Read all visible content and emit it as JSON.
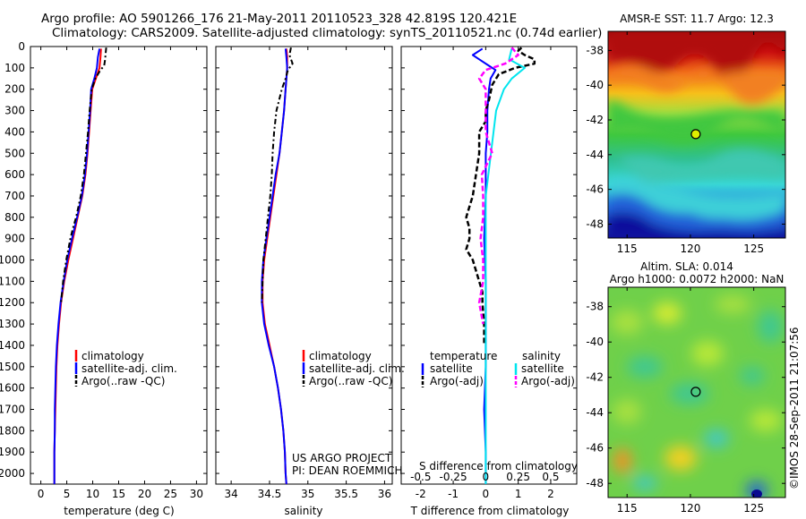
{
  "title_line1": "Argo profile: AO 5901266_176 21-May-2011 20110523_328 42.819S 120.421E",
  "title_line2": "Climatology: CARS2009. Satellite-adjusted climatology: synTS_20110521.nc (0.74d earlier)",
  "colors": {
    "climatology": "#ff0000",
    "satellite": "#0000ff",
    "argo": "#000000",
    "salinity_satellite": "#00e5ee",
    "salinity_argo": "#ff00ff",
    "marker_fill": "#e0f000"
  },
  "depth_ticks": [
    "0",
    "100",
    "200",
    "300",
    "400",
    "500",
    "600",
    "700",
    "800",
    "900",
    "1000",
    "1100",
    "1200",
    "1300",
    "1400",
    "1500",
    "1600",
    "1700",
    "1800",
    "1900",
    "2000"
  ],
  "chart_data": [
    {
      "type": "line",
      "name": "temperature-profile",
      "xlabel": "temperature (deg C)",
      "xlim": [
        -2,
        32
      ],
      "ylim": [
        0,
        2050
      ],
      "xticks": [
        "0",
        "5",
        "10",
        "15",
        "20",
        "25",
        "30"
      ],
      "xtick_values": [
        0,
        5,
        10,
        15,
        20,
        25,
        30
      ],
      "legend": [
        "climatology",
        "satellite-adj. clim.",
        "Argo(..raw -QC)"
      ],
      "series": [
        {
          "name": "climatology",
          "depth": [
            10,
            50,
            100,
            150,
            200,
            300,
            400,
            500,
            600,
            700,
            800,
            900,
            1000,
            1100,
            1200,
            1300,
            1400,
            1500,
            1600,
            1700,
            1800,
            1900,
            2000,
            2050
          ],
          "values": [
            11.6,
            11.5,
            11.3,
            10.6,
            9.9,
            9.6,
            9.3,
            9.0,
            8.6,
            8.0,
            7.1,
            6.2,
            5.3,
            4.5,
            3.9,
            3.5,
            3.2,
            3.0,
            2.9,
            2.8,
            2.7,
            2.6,
            2.6,
            2.6
          ]
        },
        {
          "name": "satellite-adj. clim.",
          "depth": [
            10,
            50,
            100,
            150,
            200,
            300,
            400,
            500,
            600,
            700,
            800,
            900,
            1000,
            1100,
            1200,
            1300,
            1400,
            1500,
            1600,
            1700,
            1800,
            1900,
            2000,
            2050
          ],
          "values": [
            11.3,
            11.0,
            10.8,
            10.3,
            9.7,
            9.5,
            9.2,
            8.9,
            8.5,
            7.9,
            7.0,
            6.0,
            5.1,
            4.4,
            3.8,
            3.4,
            3.1,
            2.9,
            2.8,
            2.7,
            2.7,
            2.6,
            2.6,
            2.6
          ]
        },
        {
          "name": "Argo(..raw -QC)",
          "depth": [
            5,
            30,
            60,
            90,
            110,
            150,
            200,
            300,
            400,
            500,
            600,
            700,
            800,
            850,
            900,
            1000,
            1100,
            1200
          ],
          "values": [
            12.6,
            12.5,
            12.4,
            12.2,
            11.5,
            10.5,
            9.8,
            9.4,
            9.1,
            8.7,
            8.3,
            7.7,
            6.8,
            6.2,
            5.7,
            4.9,
            4.3,
            3.9
          ]
        }
      ]
    },
    {
      "type": "line",
      "name": "salinity-profile",
      "xlabel": "salinity",
      "xlim": [
        33.8,
        36.1
      ],
      "ylim": [
        0,
        2050
      ],
      "xticks": [
        "34",
        "34.5",
        "35",
        "35.5",
        "36"
      ],
      "xtick_values": [
        34,
        34.5,
        35,
        35.5,
        36
      ],
      "legend": [
        "climatology",
        "satellite-adj. clim.",
        "Argo(..raw -QC)"
      ],
      "annotation": [
        "US ARGO PROJECT",
        "PI: DEAN ROEMMICH"
      ],
      "series": [
        {
          "name": "climatology",
          "depth": [
            10,
            50,
            100,
            150,
            200,
            300,
            400,
            500,
            600,
            700,
            800,
            900,
            1000,
            1100,
            1200,
            1300,
            1400,
            1500,
            1600,
            1700,
            1800,
            1900,
            2000,
            2050
          ],
          "values": [
            34.72,
            34.73,
            34.73,
            34.72,
            34.71,
            34.69,
            34.66,
            34.63,
            34.59,
            34.55,
            34.51,
            34.47,
            34.43,
            34.41,
            34.41,
            34.44,
            34.5,
            34.56,
            34.61,
            34.65,
            34.68,
            34.7,
            34.71,
            34.72
          ]
        },
        {
          "name": "satellite-adj. clim.",
          "depth": [
            10,
            50,
            100,
            150,
            200,
            300,
            400,
            500,
            600,
            700,
            800,
            900,
            1000,
            1100,
            1200,
            1300,
            1400,
            1500,
            1600,
            1700,
            1800,
            1900,
            2000,
            2050
          ],
          "values": [
            34.71,
            34.72,
            34.73,
            34.72,
            34.71,
            34.69,
            34.66,
            34.63,
            34.58,
            34.54,
            34.5,
            34.46,
            34.42,
            34.4,
            34.4,
            34.43,
            34.49,
            34.56,
            34.61,
            34.65,
            34.68,
            34.7,
            34.71,
            34.72
          ]
        },
        {
          "name": "Argo(..raw -QC)",
          "depth": [
            5,
            40,
            80,
            110,
            150,
            200,
            300,
            400,
            500,
            600,
            700,
            800,
            900,
            1000,
            1100,
            1200
          ],
          "values": [
            34.78,
            34.76,
            34.8,
            34.74,
            34.71,
            34.66,
            34.59,
            34.56,
            34.54,
            34.53,
            34.51,
            34.48,
            34.45,
            34.42,
            34.41,
            34.4
          ]
        }
      ]
    },
    {
      "type": "line",
      "name": "difference-profile",
      "xlabel": "T difference from climatology",
      "xlabel2": "S difference from climatology",
      "xlim": [
        -2.6,
        2.8
      ],
      "ylim": [
        0,
        2050
      ],
      "xticks": [
        "-2",
        "-1",
        "0",
        "1",
        "2"
      ],
      "xtick_values": [
        -2,
        -1,
        0,
        1,
        2
      ],
      "xticks_top": [
        "-0.5",
        "-0.25",
        "0",
        "0.25",
        "0.5"
      ],
      "xticks_top_values": [
        -0.5,
        -0.25,
        0,
        0.25,
        0.5
      ],
      "legend_headers": [
        "temperature",
        "salinity"
      ],
      "legend_left": [
        "satellite",
        "Argo(-adj)"
      ],
      "legend_right": [
        "satellite",
        "Argo(-adj)"
      ],
      "series": [
        {
          "name": "T satellite",
          "depth": [
            10,
            40,
            60,
            90,
            110,
            150,
            200,
            300,
            400,
            500,
            700,
            900,
            1100,
            1300,
            1500,
            1700,
            1900,
            2000,
            2050
          ],
          "values": [
            -0.1,
            -0.4,
            -0.2,
            0.1,
            0.3,
            0.15,
            0.1,
            0.05,
            0.05,
            0.0,
            0.0,
            -0.05,
            0.0,
            0.0,
            0.0,
            -0.05,
            0.0,
            0.0,
            0.0
          ]
        },
        {
          "name": "T Argo(-adj)",
          "depth": [
            5,
            20,
            40,
            60,
            80,
            100,
            130,
            180,
            250,
            300,
            350,
            400,
            500,
            600,
            700,
            750,
            800,
            850,
            900,
            950,
            1000,
            1050,
            1100,
            1150,
            1200,
            1300,
            1400
          ],
          "values": [
            1.1,
            1.0,
            1.2,
            1.5,
            1.5,
            0.9,
            0.4,
            0.2,
            0.1,
            0.0,
            0.0,
            -0.2,
            -0.2,
            -0.3,
            -0.4,
            -0.5,
            -0.6,
            -0.5,
            -0.5,
            -0.6,
            -0.4,
            -0.3,
            -0.2,
            -0.1,
            -0.1,
            -0.05,
            -0.05
          ]
        },
        {
          "name": "S satellite",
          "depth": [
            10,
            60,
            100,
            150,
            200,
            300,
            400,
            500,
            700,
            900,
            1100,
            1300,
            1500,
            1700,
            1900,
            2050
          ],
          "values": [
            0.2,
            0.18,
            0.3,
            0.2,
            0.14,
            0.08,
            0.06,
            0.04,
            0.0,
            0.0,
            0.0,
            0.0,
            0.0,
            0.0,
            0.0,
            0.0
          ]
        },
        {
          "name": "S Argo(-adj)",
          "depth": [
            5,
            40,
            80,
            110,
            150,
            200,
            300,
            400,
            500,
            600,
            700,
            800,
            900,
            1000,
            1100,
            1200,
            1300
          ],
          "values": [
            0.2,
            0.25,
            0.15,
            0.0,
            -0.05,
            0.0,
            0.0,
            0.0,
            0.05,
            -0.03,
            -0.02,
            -0.02,
            -0.04,
            -0.02,
            -0.02,
            -0.05,
            -0.02
          ]
        }
      ]
    },
    {
      "type": "heatmap",
      "name": "sst-map",
      "title": "AMSR-E SST: 11.7 Argo: 12.3",
      "xticks": [
        "115",
        "120",
        "125"
      ],
      "yticks": [
        "-38",
        "-40",
        "-42",
        "-44",
        "-46",
        "-48"
      ],
      "xlim": [
        113.5,
        127.5
      ],
      "ylim": [
        -48.8,
        -36.9
      ],
      "marker": {
        "lon": 120.421,
        "lat": -42.819
      }
    },
    {
      "type": "heatmap",
      "name": "sla-map",
      "title_line1": "Altim. SLA: 0.014",
      "title_line2": "Argo h1000: 0.0072 h2000: NaN",
      "xticks": [
        "115",
        "120",
        "125"
      ],
      "yticks": [
        "-38",
        "-40",
        "-42",
        "-44",
        "-46",
        "-48"
      ],
      "xlim": [
        113.5,
        127.5
      ],
      "ylim": [
        -48.8,
        -36.9
      ],
      "marker": {
        "lon": 120.421,
        "lat": -42.819
      }
    }
  ],
  "footer_vertical": "©IMOS 28-Sep-2011 21:07:56"
}
